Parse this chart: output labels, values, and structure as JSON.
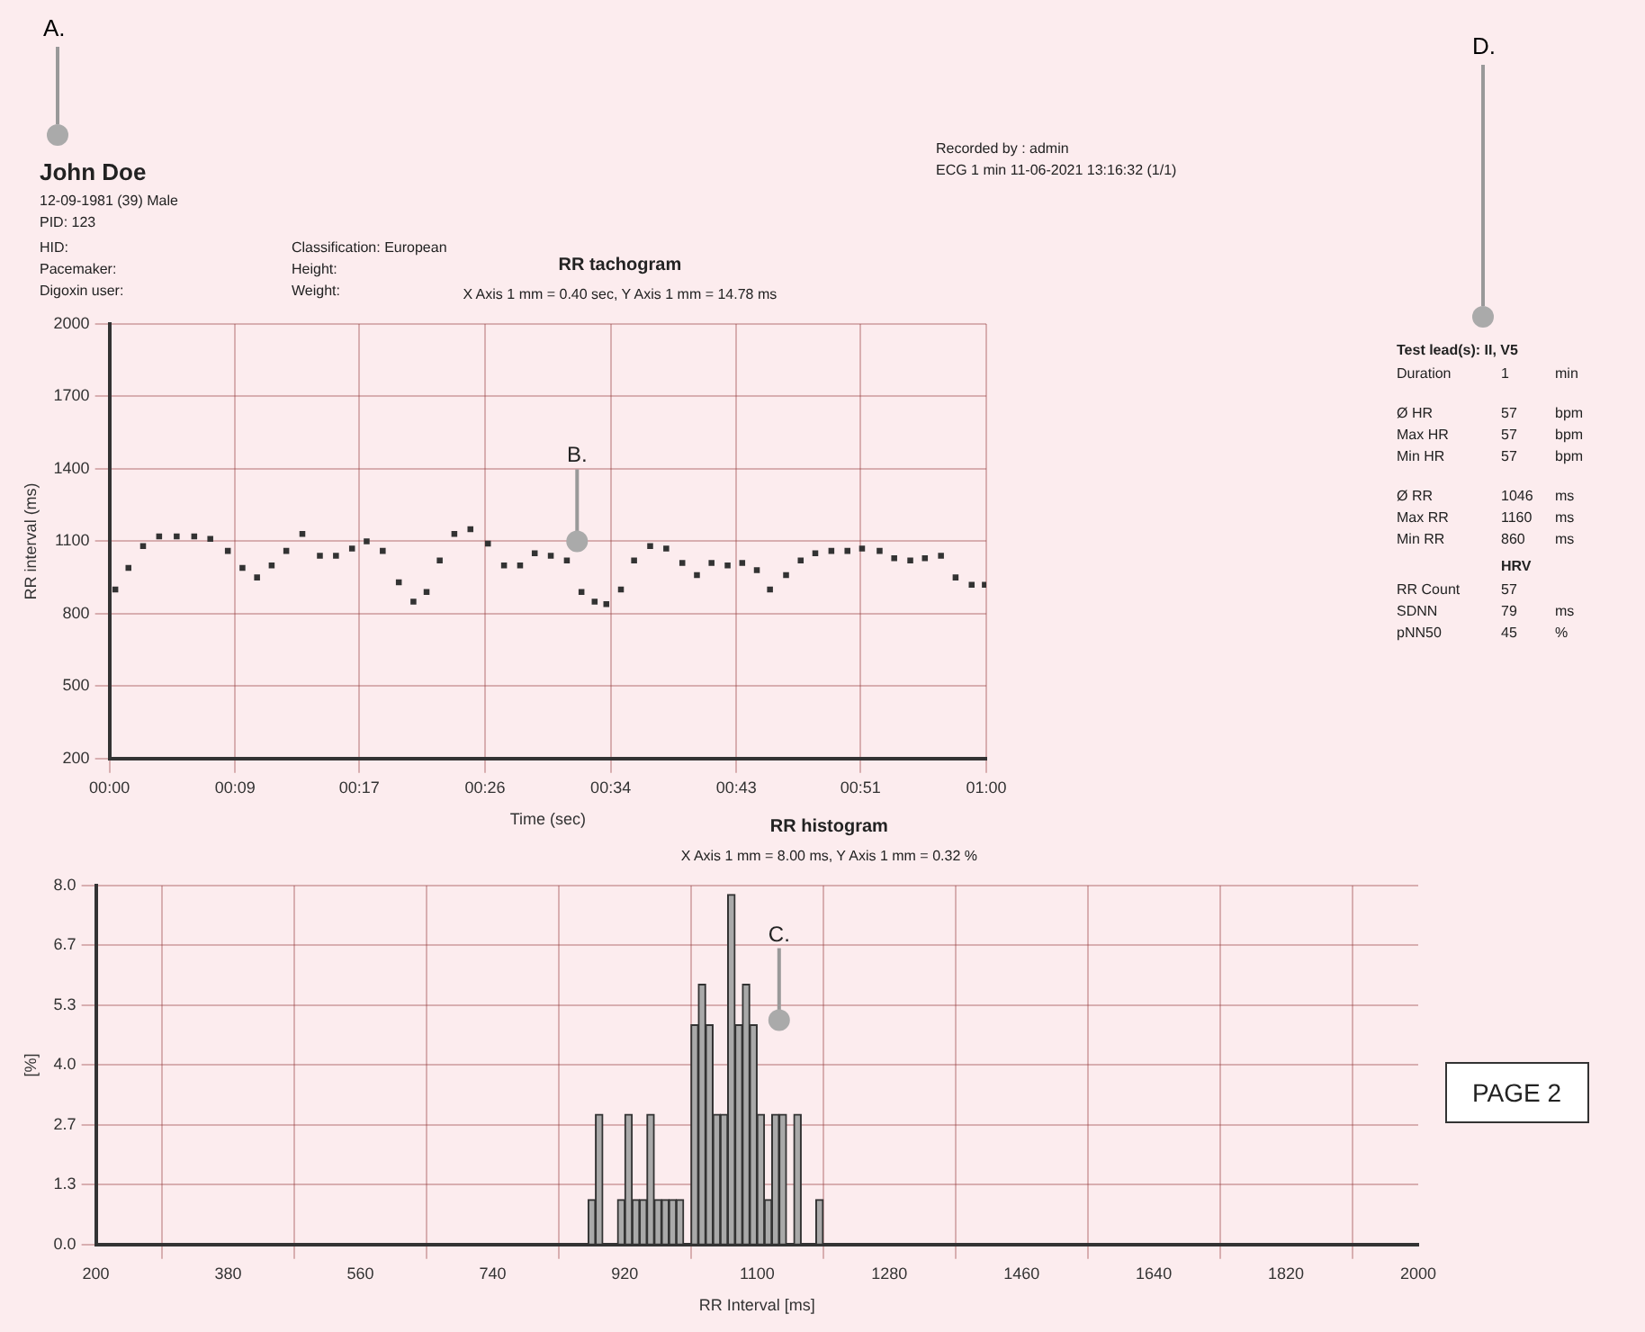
{
  "chart_data": [
    {
      "type": "scatter",
      "title": "RR tachogram",
      "subtitle": "X Axis 1 mm = 0.40 sec, Y Axis 1 mm = 14.78 ms",
      "xlabel": "Time (sec)",
      "ylabel": "RR interval (ms)",
      "marker": "square",
      "grid": true,
      "legend": false,
      "xlim": [
        0,
        60
      ],
      "xticks": [
        {
          "value": 0,
          "label": "00:00"
        },
        {
          "value": 8.6,
          "label": "00:09"
        },
        {
          "value": 17.1,
          "label": "00:17"
        },
        {
          "value": 25.7,
          "label": "00:26"
        },
        {
          "value": 34.3,
          "label": "00:34"
        },
        {
          "value": 42.9,
          "label": "00:43"
        },
        {
          "value": 51.4,
          "label": "00:51"
        },
        {
          "value": 60,
          "label": "01:00"
        }
      ],
      "ylim": [
        200,
        2000
      ],
      "yticks": [
        200,
        500,
        800,
        1100,
        1400,
        1700,
        2000
      ],
      "annotations": [
        {
          "text": "B.",
          "x": 32,
          "y": 1100
        }
      ],
      "series": [
        {
          "color": "#333333",
          "x": [
            0.4,
            1.3,
            2.3,
            3.4,
            4.6,
            5.8,
            6.9,
            8.1,
            9.1,
            10.1,
            11.1,
            12.1,
            13.2,
            14.4,
            15.5,
            16.6,
            17.6,
            18.7,
            19.8,
            20.8,
            21.7,
            22.6,
            23.6,
            24.7,
            25.9,
            27.0,
            28.1,
            29.1,
            30.2,
            31.3,
            32.3,
            33.2,
            34.0,
            35.0,
            35.9,
            37.0,
            38.1,
            39.2,
            40.2,
            41.2,
            42.3,
            43.3,
            44.3,
            45.2,
            46.3,
            47.3,
            48.3,
            49.4,
            50.5,
            51.5,
            52.7,
            53.7,
            54.8,
            55.8,
            56.9,
            57.9,
            59.0,
            59.9
          ],
          "values": [
            900,
            990,
            1080,
            1120,
            1120,
            1120,
            1110,
            1060,
            990,
            950,
            1000,
            1060,
            1130,
            1040,
            1040,
            1070,
            1100,
            1060,
            930,
            850,
            890,
            1020,
            1130,
            1150,
            1090,
            1000,
            1000,
            1050,
            1040,
            1020,
            890,
            850,
            840,
            900,
            1020,
            1080,
            1070,
            1010,
            960,
            1010,
            1000,
            1010,
            980,
            900,
            960,
            1020,
            1050,
            1060,
            1060,
            1070,
            1060,
            1030,
            1020,
            1030,
            1040,
            950,
            920,
            920
          ]
        }
      ]
    },
    {
      "type": "histogram",
      "title": "RR histogram",
      "subtitle": "X Axis 1 mm = 8.00 ms, Y Axis 1 mm = 0.32 %",
      "xlabel": "RR Interval [ms]",
      "ylabel": "[%]",
      "grid": true,
      "legend": false,
      "color": "#a9a9a9",
      "xlim": [
        200,
        2000
      ],
      "xticks": [
        200,
        380,
        560,
        740,
        920,
        1100,
        1280,
        1460,
        1640,
        1820,
        2000
      ],
      "ylim": [
        0,
        8
      ],
      "yticks": [
        {
          "value": 0,
          "label": "0.0"
        },
        {
          "value": 1.33,
          "label": "1.3"
        },
        {
          "value": 2.67,
          "label": "2.7"
        },
        {
          "value": 4,
          "label": "4.0"
        },
        {
          "value": 5.33,
          "label": "5.3"
        },
        {
          "value": 6.67,
          "label": "6.7"
        },
        {
          "value": 8,
          "label": "8.0"
        }
      ],
      "annotations": [
        {
          "text": "C.",
          "x": 1130,
          "y": 5.0
        }
      ],
      "bins": [
        870,
        880,
        890,
        900,
        910,
        920,
        930,
        940,
        950,
        960,
        970,
        980,
        990,
        1000,
        1010,
        1020,
        1030,
        1040,
        1050,
        1060,
        1070,
        1080,
        1090,
        1100,
        1110,
        1120,
        1130,
        1140,
        1150,
        1160,
        1170,
        1180,
        1190
      ],
      "values": [
        1.0,
        2.9,
        0,
        0,
        1.0,
        2.9,
        1.0,
        1.0,
        2.9,
        1.0,
        1.0,
        1.0,
        1.0,
        0,
        4.9,
        5.8,
        4.9,
        2.9,
        2.9,
        7.8,
        4.9,
        5.8,
        4.9,
        2.9,
        1.0,
        2.9,
        2.9,
        0,
        2.9,
        0,
        0,
        1.0
      ]
    },
    {
      "type": "other",
      "title": "John Doe",
      "annotations": [
        "12-09-1981 (39) Male",
        "PID: 123"
      ]
    },
    {
      "type": "other",
      "annotations": [
        "HID:",
        "Classification: European",
        "Pacemaker:",
        "Height:",
        "Digoxin user:",
        "Weight:"
      ]
    },
    {
      "type": "other",
      "annotations": [
        "Recorded by : admin",
        "ECG 1 min 11-06-2021 13:16:32 (1/1)"
      ]
    },
    {
      "type": "other",
      "title": "Test lead(s): II, V5",
      "annotations": [
        "Duration",
        "1",
        "min",
        "Ø HR",
        "57",
        "bpm",
        "Max HR",
        "57",
        "bpm",
        "Min HR",
        "57",
        "bpm",
        "Ø RR",
        "1046",
        "ms",
        "Max RR",
        "1160",
        "ms",
        "Min RR",
        "860",
        "ms"
      ]
    },
    {
      "type": "other",
      "title": "HRV",
      "annotations": [
        "RR Count",
        "57",
        "SDNN",
        "79",
        "ms",
        "pNN50",
        "45",
        "%"
      ]
    },
    {
      "type": "other",
      "annotations": [
        "PAGE 2"
      ]
    },
    {
      "type": "other",
      "annotations": [
        "A."
      ]
    },
    {
      "type": "other",
      "annotations": [
        "D."
      ]
    }
  ]
}
